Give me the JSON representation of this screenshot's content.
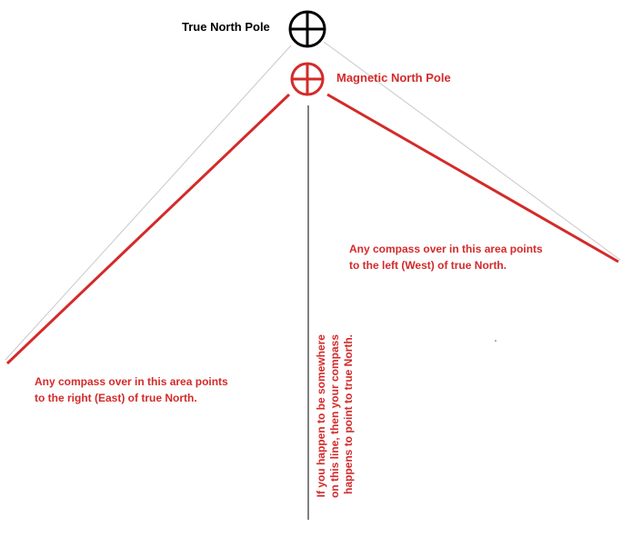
{
  "labels": {
    "true_north": "True North Pole",
    "magnetic_north": "Magnetic North Pole"
  },
  "areas": {
    "east": [
      "Any compass over in this area points",
      "to the right (East) of true North."
    ],
    "west": [
      "Any compass over in this area points",
      "to the left (West) of true North."
    ]
  },
  "agonic_line": [
    "If you happen to be somewhere",
    "on this line, then your compass",
    "happens to point to true North."
  ],
  "colors": {
    "true_north": "#000000",
    "magnetic": "#d42a2a",
    "thin_line": "#c8c8c8"
  },
  "icons": {
    "true_north": "crosshair-circle-icon",
    "magnetic_north": "crosshair-circle-icon"
  }
}
